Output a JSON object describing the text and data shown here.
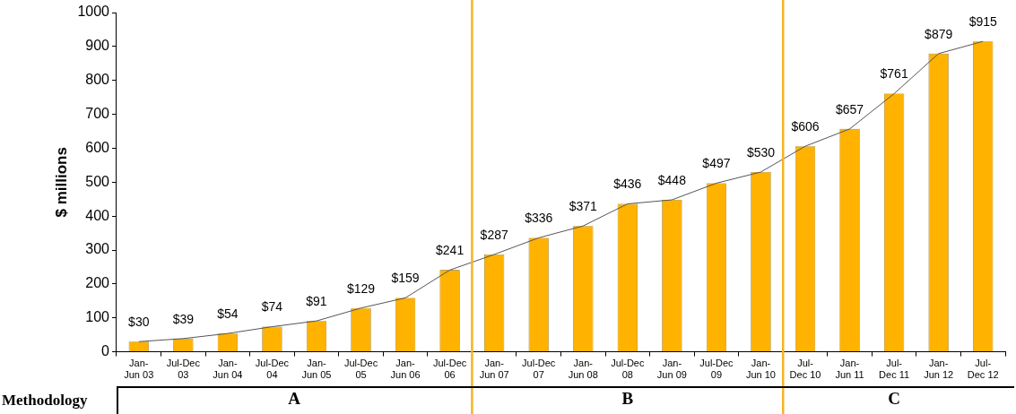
{
  "chart_data": {
    "type": "bar",
    "ylabel": "$ millions",
    "categories": [
      "Jan-\nJun 03",
      "Jul-Dec\n03",
      "Jan-\nJun 04",
      "Jul-Dec\n04",
      "Jan-\nJun 05",
      "Jul-Dec\n05",
      "Jan-\nJun 06",
      "Jul-Dec\n06",
      "Jan-\nJun 07",
      "Jul-Dec\n07",
      "Jan-\nJun 08",
      "Jul-Dec\n08",
      "Jan-\nJun 09",
      "Jul-Dec\n09",
      "Jan-\nJun 10",
      "Jul-\nDec 10",
      "Jan-\nJun 11",
      "Jul-\nDec 11",
      "Jan-\nJun 12",
      "Jul-\nDec 12"
    ],
    "series": [
      {
        "type": "bar",
        "color": "#ffb300",
        "values": [
          30,
          39,
          54,
          74,
          91,
          129,
          159,
          241,
          287,
          336,
          371,
          436,
          448,
          497,
          530,
          606,
          657,
          761,
          879,
          915
        ],
        "value_labels": [
          "$30",
          "$39",
          "$54",
          "$74",
          "$91",
          "$129",
          "$159",
          "$241",
          "$287",
          "$336",
          "$371",
          "$436",
          "$448",
          "$497",
          "$530",
          "$606",
          "$657",
          "$761",
          "$879",
          "$915"
        ]
      },
      {
        "type": "line",
        "color": "#555555",
        "marker": "none",
        "values": [
          30,
          39,
          54,
          74,
          91,
          129,
          159,
          241,
          287,
          336,
          371,
          436,
          448,
          497,
          530,
          606,
          657,
          761,
          879,
          915
        ]
      }
    ],
    "ylim": [
      0,
      1000
    ],
    "yticks": [
      0,
      100,
      200,
      300,
      400,
      500,
      600,
      700,
      800,
      900,
      1000
    ],
    "grid": false,
    "legend": false,
    "annotations": [
      "Methodology",
      "A",
      "B",
      "C"
    ]
  }
}
